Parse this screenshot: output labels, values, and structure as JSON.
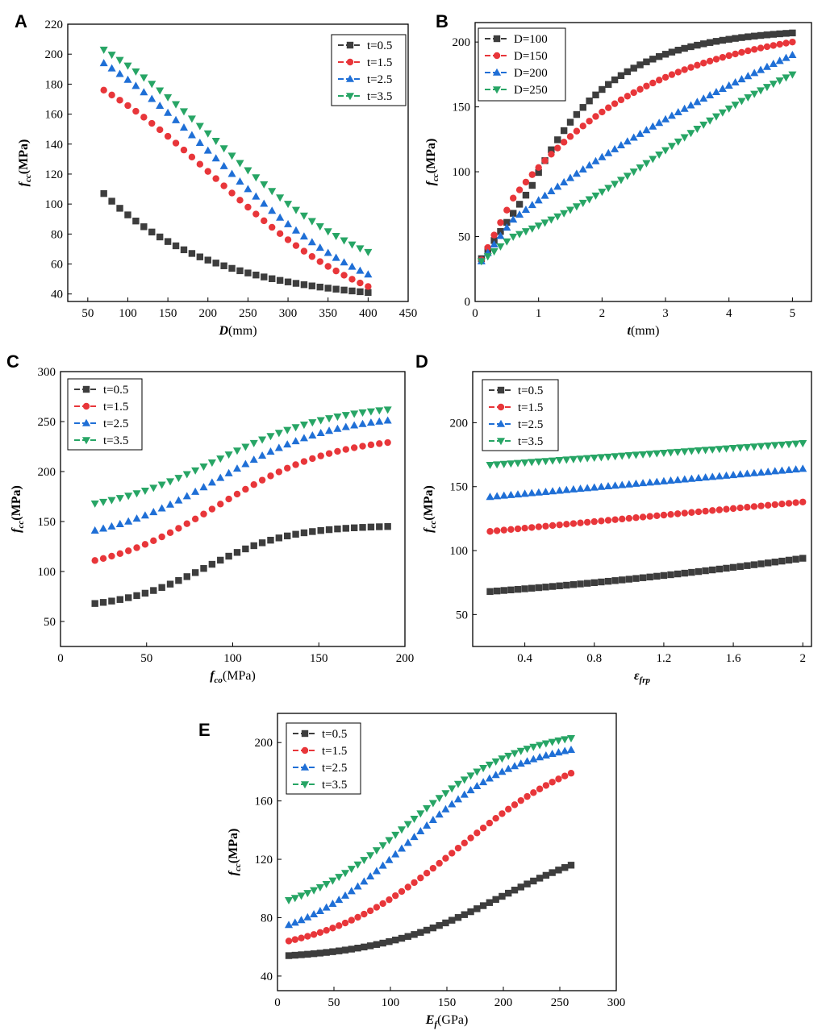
{
  "colors": {
    "t05": "#3d3d3d",
    "t15": "#e8363a",
    "t25": "#1f6fd6",
    "t35": "#27a565"
  },
  "chart_data": [
    {
      "panel": "A",
      "type": "scatter",
      "xlabel_main": "D",
      "xlabel_unit": "(mm)",
      "ylabel_main": "f",
      "ylabel_sub": "cc",
      "ylabel_unit": "(MPa)",
      "xlim": [
        25,
        450
      ],
      "ylim": [
        35,
        220
      ],
      "xticks": [
        50,
        100,
        150,
        200,
        250,
        300,
        350,
        400,
        450
      ],
      "yticks": [
        40,
        60,
        80,
        100,
        120,
        140,
        160,
        180,
        200,
        220
      ],
      "legend_pos": "top-right",
      "series": [
        {
          "name": "t=0.5",
          "marker": "square",
          "x0": 70,
          "x1": 400,
          "n": 34,
          "y0": 107,
          "y1": 41,
          "shape": "decay"
        },
        {
          "name": "t=1.5",
          "marker": "circle",
          "x0": 70,
          "x1": 400,
          "n": 34,
          "y0": 176,
          "y1": 45,
          "shape": "sigdown"
        },
        {
          "name": "t=2.5",
          "marker": "tri-up",
          "x0": 70,
          "x1": 400,
          "n": 34,
          "y0": 194,
          "y1": 53,
          "shape": "sigdown"
        },
        {
          "name": "t=3.5",
          "marker": "tri-down",
          "x0": 70,
          "x1": 400,
          "n": 34,
          "y0": 203,
          "y1": 68,
          "shape": "sigdown"
        }
      ]
    },
    {
      "panel": "B",
      "type": "scatter",
      "xlabel_main": "t",
      "xlabel_unit": "(mm)",
      "ylabel_main": "f",
      "ylabel_sub": "cc",
      "ylabel_unit": "(MPa)",
      "xlim": [
        0,
        5.3
      ],
      "ylim": [
        0,
        215
      ],
      "xticks": [
        0,
        1,
        2,
        3,
        4,
        5
      ],
      "yticks": [
        0,
        50,
        100,
        150,
        200
      ],
      "legend_pos": "top-left",
      "series": [
        {
          "name": "D=100",
          "marker": "square",
          "x0": 0.1,
          "x1": 5,
          "n": 50,
          "y0": 33,
          "y1": 207,
          "shape": "satfast"
        },
        {
          "name": "D=150",
          "marker": "circle",
          "x0": 0.1,
          "x1": 5,
          "n": 50,
          "y0": 32,
          "y1": 200,
          "shape": "satmed"
        },
        {
          "name": "D=200",
          "marker": "tri-up",
          "x0": 0.1,
          "x1": 5,
          "n": 50,
          "y0": 31,
          "y1": 190,
          "shape": "satslow"
        },
        {
          "name": "D=250",
          "marker": "tri-down",
          "x0": 0.1,
          "x1": 5,
          "n": 50,
          "y0": 31,
          "y1": 175,
          "shape": "satslowest"
        }
      ]
    },
    {
      "panel": "C",
      "type": "scatter",
      "xlabel_main": "f",
      "xlabel_sub": "co",
      "xlabel_unit": "(MPa)",
      "ylabel_main": "f",
      "ylabel_sub": "cc",
      "ylabel_unit": "(MPa)",
      "xlim": [
        0,
        200
      ],
      "ylim": [
        25,
        300
      ],
      "xticks": [
        0,
        50,
        100,
        150,
        200
      ],
      "yticks": [
        50,
        100,
        150,
        200,
        250,
        300
      ],
      "legend_pos": "top-left",
      "series": [
        {
          "name": "t=0.5",
          "marker": "square",
          "x0": 20,
          "x1": 190,
          "n": 36,
          "y0": 68,
          "y1": 145,
          "shape": "sigup_early"
        },
        {
          "name": "t=1.5",
          "marker": "circle",
          "x0": 20,
          "x1": 190,
          "n": 36,
          "y0": 111,
          "y1": 229,
          "shape": "sigup_mid"
        },
        {
          "name": "t=2.5",
          "marker": "tri-up",
          "x0": 20,
          "x1": 190,
          "n": 36,
          "y0": 141,
          "y1": 251,
          "shape": "sigup_mid"
        },
        {
          "name": "t=3.5",
          "marker": "tri-down",
          "x0": 20,
          "x1": 190,
          "n": 36,
          "y0": 168,
          "y1": 262,
          "shape": "sigup_mid"
        }
      ]
    },
    {
      "panel": "D",
      "type": "scatter",
      "xlabel_main": "ε",
      "xlabel_sub": "frp",
      "xlabel_unit": "",
      "ylabel_main": "f",
      "ylabel_sub": "cc",
      "ylabel_unit": "(MPa)",
      "xlim": [
        0.1,
        2.05
      ],
      "ylim": [
        25,
        240
      ],
      "xticks": [
        0.4,
        0.8,
        1.2,
        1.6,
        2.0
      ],
      "yticks": [
        50,
        100,
        150,
        200
      ],
      "legend_pos": "top-left",
      "series": [
        {
          "name": "t=0.5",
          "marker": "square",
          "x0": 0.2,
          "x1": 2.0,
          "n": 46,
          "y0": 68,
          "y1": 94,
          "shape": "linconvex"
        },
        {
          "name": "t=1.5",
          "marker": "circle",
          "x0": 0.2,
          "x1": 2.0,
          "n": 46,
          "y0": 115,
          "y1": 138,
          "shape": "linear"
        },
        {
          "name": "t=2.5",
          "marker": "tri-up",
          "x0": 0.2,
          "x1": 2.0,
          "n": 46,
          "y0": 142,
          "y1": 164,
          "shape": "linear"
        },
        {
          "name": "t=3.5",
          "marker": "tri-down",
          "x0": 0.2,
          "x1": 2.0,
          "n": 46,
          "y0": 167,
          "y1": 184,
          "shape": "linear"
        }
      ]
    },
    {
      "panel": "E",
      "type": "scatter",
      "xlabel_main": "E",
      "xlabel_sub": "f",
      "xlabel_unit": "(GPa)",
      "ylabel_main": "f",
      "ylabel_sub": "cc",
      "ylabel_unit": "(MPa)",
      "xlim": [
        0,
        300
      ],
      "ylim": [
        30,
        220
      ],
      "xticks": [
        0,
        50,
        100,
        150,
        200,
        250,
        300
      ],
      "yticks": [
        40,
        80,
        120,
        160,
        200
      ],
      "legend_pos": "top-left",
      "series": [
        {
          "name": "t=0.5",
          "marker": "square",
          "x0": 10,
          "x1": 260,
          "n": 46,
          "y0": 54,
          "y1": 116,
          "shape": "sigup_late"
        },
        {
          "name": "t=1.5",
          "marker": "circle",
          "x0": 10,
          "x1": 260,
          "n": 46,
          "y0": 64,
          "y1": 179,
          "shape": "sigup_late2"
        },
        {
          "name": "t=2.5",
          "marker": "tri-up",
          "x0": 10,
          "x1": 260,
          "n": 46,
          "y0": 75,
          "y1": 195,
          "shape": "sigup_mid"
        },
        {
          "name": "t=3.5",
          "marker": "tri-down",
          "x0": 10,
          "x1": 260,
          "n": 46,
          "y0": 92,
          "y1": 203,
          "shape": "sigup_mid"
        }
      ]
    }
  ]
}
